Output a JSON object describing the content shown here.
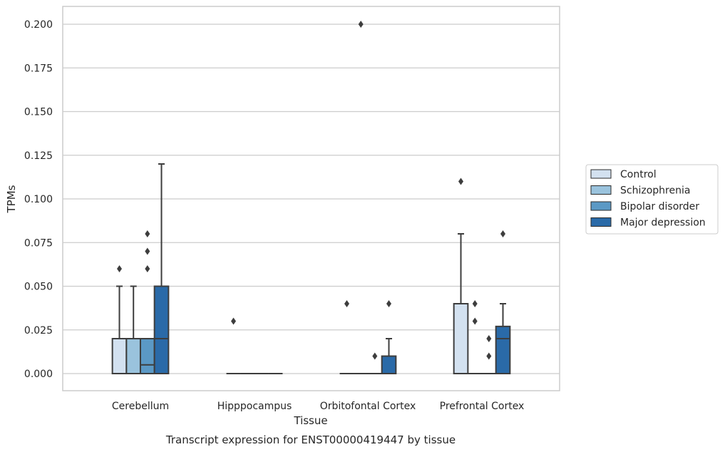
{
  "chart_data": {
    "type": "box",
    "xlabel": "Tissue",
    "ylabel": "TPMs",
    "caption": "Transcript expression for ENST00000419447 by tissue",
    "ylim": [
      -0.01,
      0.21
    ],
    "yticks": [
      "0.000",
      "0.025",
      "0.050",
      "0.075",
      "0.100",
      "0.125",
      "0.150",
      "0.175",
      "0.200"
    ],
    "ytick_values": [
      0,
      0.025,
      0.05,
      0.075,
      0.1,
      0.125,
      0.15,
      0.175,
      0.2
    ],
    "grid": "horizontal",
    "legend_position": "right",
    "categories": [
      "Cerebellum",
      "Hipppocampus",
      "Orbitofontal Cortex",
      "Prefrontal Cortex"
    ],
    "series": [
      {
        "name": "Control",
        "color": "#d3e1f0",
        "boxes": [
          {
            "q1": 0,
            "median": 0,
            "q3": 0.02,
            "whisker_low": 0,
            "whisker_high": 0.05,
            "outliers": [
              0.06
            ]
          },
          {
            "q1": 0,
            "median": 0,
            "q3": 0,
            "whisker_low": 0,
            "whisker_high": 0,
            "outliers": [
              0.03
            ]
          },
          {
            "q1": 0,
            "median": 0,
            "q3": 0,
            "whisker_low": 0,
            "whisker_high": 0,
            "outliers": [
              0.04
            ]
          },
          {
            "q1": 0,
            "median": 0,
            "q3": 0.04,
            "whisker_low": 0,
            "whisker_high": 0.08,
            "outliers": [
              0.11
            ]
          }
        ]
      },
      {
        "name": "Schizophrenia",
        "color": "#9ac3dd",
        "boxes": [
          {
            "q1": 0,
            "median": 0,
            "q3": 0.02,
            "whisker_low": 0,
            "whisker_high": 0.05,
            "outliers": []
          },
          {
            "q1": 0,
            "median": 0,
            "q3": 0,
            "whisker_low": 0,
            "whisker_high": 0,
            "outliers": []
          },
          {
            "q1": 0,
            "median": 0,
            "q3": 0,
            "whisker_low": 0,
            "whisker_high": 0,
            "outliers": [
              0.2
            ]
          },
          {
            "q1": 0,
            "median": 0,
            "q3": 0,
            "whisker_low": 0,
            "whisker_high": 0,
            "outliers": [
              0.04,
              0.03
            ]
          }
        ]
      },
      {
        "name": "Bipolar disorder",
        "color": "#5b99c5",
        "boxes": [
          {
            "q1": 0,
            "median": 0.005,
            "q3": 0.02,
            "whisker_low": 0,
            "whisker_high": 0.02,
            "outliers": [
              0.08,
              0.07,
              0.06
            ]
          },
          {
            "q1": 0,
            "median": 0,
            "q3": 0,
            "whisker_low": 0,
            "whisker_high": 0,
            "outliers": []
          },
          {
            "q1": 0,
            "median": 0,
            "q3": 0,
            "whisker_low": 0,
            "whisker_high": 0,
            "outliers": [
              0.01
            ]
          },
          {
            "q1": 0,
            "median": 0,
            "q3": 0,
            "whisker_low": 0,
            "whisker_high": 0,
            "outliers": [
              0.02,
              0.01
            ]
          }
        ]
      },
      {
        "name": "Major depression",
        "color": "#2a6aa8",
        "boxes": [
          {
            "q1": 0,
            "median": 0.02,
            "q3": 0.05,
            "whisker_low": 0,
            "whisker_high": 0.12,
            "outliers": []
          },
          {
            "q1": 0,
            "median": 0,
            "q3": 0,
            "whisker_low": 0,
            "whisker_high": 0,
            "outliers": []
          },
          {
            "q1": 0,
            "median": 0,
            "q3": 0.01,
            "whisker_low": 0,
            "whisker_high": 0.02,
            "outliers": [
              0.04
            ]
          },
          {
            "q1": 0,
            "median": 0.02,
            "q3": 0.027,
            "whisker_low": 0,
            "whisker_high": 0.04,
            "outliers": [
              0.08
            ]
          }
        ]
      }
    ]
  }
}
